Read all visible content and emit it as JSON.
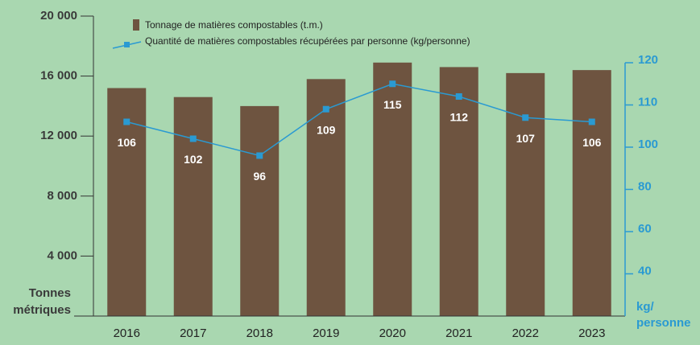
{
  "chart_data": {
    "type": "bar_line",
    "categories": [
      "2016",
      "2017",
      "2018",
      "2019",
      "2020",
      "2021",
      "2022",
      "2023"
    ],
    "series": [
      {
        "name": "Tonnage de matières compostables (t.m.)",
        "color": "#6e5440",
        "type": "bar",
        "values": [
          15200,
          14600,
          14000,
          15800,
          16900,
          16600,
          16200,
          16400
        ]
      },
      {
        "name": "Quantité de matières compostables récupérées par personne (kg/personne)",
        "color": "#2a9ad2",
        "type": "line",
        "axis": "y2",
        "values": [
          106,
          102,
          96,
          109,
          115,
          112,
          107,
          106
        ]
      }
    ],
    "ylabel": [
      "Tonnes",
      "métriques"
    ],
    "y2label": [
      "kg/",
      "personne"
    ],
    "ylim": [
      0,
      20000
    ],
    "yticks": [
      {
        "value": 4000,
        "label": "4 000"
      },
      {
        "value": 8000,
        "label": "8 000"
      },
      {
        "value": 12000,
        "label": "12 000"
      },
      {
        "value": 16000,
        "label": "16 000"
      },
      {
        "value": 20000,
        "label": "20 000"
      }
    ],
    "y2lim": [
      20,
      120
    ],
    "y2ticks": [
      40,
      60,
      80,
      100,
      110,
      120
    ]
  }
}
